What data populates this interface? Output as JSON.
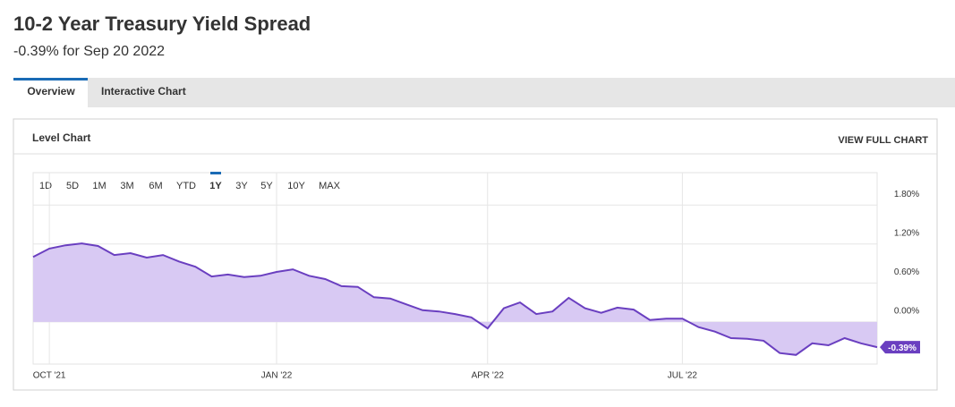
{
  "header": {
    "title": "10-2 Year Treasury Yield Spread",
    "subtitle": "-0.39% for Sep 20 2022"
  },
  "tabs": [
    {
      "label": "Overview",
      "selected": true
    },
    {
      "label": "Interactive Chart"
    }
  ],
  "panel": {
    "title": "Level Chart",
    "action": "VIEW FULL CHART"
  },
  "range_buttons": [
    {
      "label": "1D"
    },
    {
      "label": "5D"
    },
    {
      "label": "1M"
    },
    {
      "label": "3M"
    },
    {
      "label": "6M"
    },
    {
      "label": "YTD"
    },
    {
      "label": "1Y",
      "selected": true
    },
    {
      "label": "3Y"
    },
    {
      "label": "5Y"
    },
    {
      "label": "10Y"
    },
    {
      "label": "MAX"
    }
  ],
  "chart_data": {
    "type": "area-line",
    "color": "#6a3fc0",
    "fill": "#d8c9f3",
    "categories": [
      null,
      "OCT '21",
      null,
      null,
      null,
      null,
      null,
      null,
      null,
      null,
      null,
      null,
      null,
      null,
      null,
      "JAN '22",
      null,
      null,
      null,
      null,
      null,
      null,
      null,
      null,
      null,
      null,
      null,
      null,
      "APR '22",
      null,
      null,
      null,
      null,
      null,
      null,
      null,
      null,
      null,
      null,
      null,
      "JUL '22",
      null,
      null,
      null,
      null,
      null,
      null,
      null,
      null,
      null,
      null,
      null,
      null
    ],
    "values": [
      1.0,
      1.13,
      1.18,
      1.21,
      1.17,
      1.03,
      1.06,
      0.99,
      1.03,
      0.93,
      0.85,
      0.7,
      0.73,
      0.69,
      0.71,
      0.77,
      0.81,
      0.71,
      0.66,
      0.55,
      0.54,
      0.38,
      0.36,
      0.27,
      0.18,
      0.16,
      0.12,
      0.07,
      -0.1,
      0.21,
      0.3,
      0.12,
      0.16,
      0.37,
      0.21,
      0.14,
      0.22,
      0.19,
      0.03,
      0.05,
      0.05,
      -0.08,
      -0.15,
      -0.25,
      -0.26,
      -0.29,
      -0.48,
      -0.51,
      -0.33,
      -0.36,
      -0.25,
      -0.33,
      -0.39
    ],
    "value_labels": [
      null,
      null,
      null,
      null,
      null,
      null,
      null,
      null,
      null,
      null,
      null,
      null,
      null,
      null,
      null,
      null,
      null,
      null,
      null,
      null,
      null,
      null,
      null,
      null,
      null,
      null,
      null,
      null,
      null,
      null,
      null,
      null,
      null,
      null,
      null,
      null,
      null,
      null,
      null,
      null,
      null,
      null,
      null,
      null,
      null,
      null,
      null,
      null,
      null,
      null,
      null,
      null,
      "-0.39%"
    ],
    "ylim": [
      -0.65,
      2.3
    ],
    "yticks": [
      {
        "value": 0,
        "label": "0.00%"
      },
      {
        "value": 0.6,
        "label": "0.60%"
      },
      {
        "value": 1.2,
        "label": "1.20%"
      },
      {
        "value": 1.8,
        "label": "1.80%"
      }
    ],
    "grid": true
  }
}
